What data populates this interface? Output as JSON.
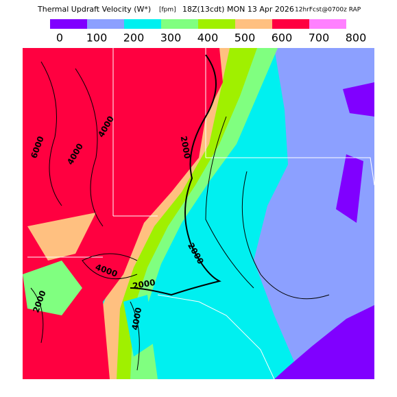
{
  "header": {
    "title": "Thermal Updraft Velocity (W*)",
    "units": "[fpm]",
    "valid": "18Z(13cdt) MON 13 Apr 2026",
    "forecast": "12hrFcst@0700z RAP"
  },
  "legend": {
    "colors": [
      "#8000ff",
      "#8ca0ff",
      "#00f0f0",
      "#80ff80",
      "#a0f000",
      "#ffc080",
      "#ff0040",
      "#ff80ff"
    ],
    "labels": [
      0,
      100,
      200,
      300,
      400,
      500,
      600,
      700,
      800
    ]
  },
  "contour_labels": [
    4000,
    6000,
    4000,
    2000,
    2000,
    4000,
    2000,
    4000,
    2000
  ]
}
